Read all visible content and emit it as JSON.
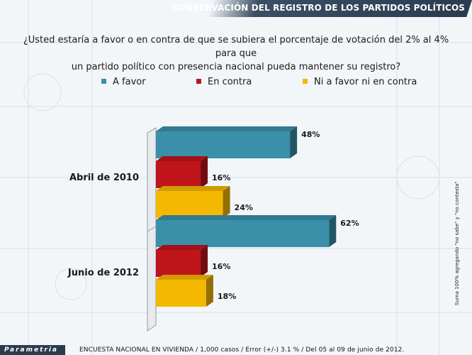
{
  "header": {
    "title": "CONSERVACIÓN DEL REGISTRO DE LOS PARTIDOS POLÍTICOS"
  },
  "question": {
    "line1": "¿Usted estaría a favor o en contra de que se subiera el porcentaje de votación del 2% al 4% para que",
    "line2": "un partido político con presencia nacional pueda mantener su registro?"
  },
  "side_note": "Suma 100% agregando \"no sabe\" y \"no contesta\"",
  "footer": {
    "logo": "Parametria",
    "survey": "ENCUESTA NACIONAL EN VIVIENDA / 1,000 casos / Error (+/-) 3.1 % / Del 05 al 09 de junio de 2012."
  },
  "chart_data": {
    "type": "bar",
    "orientation": "horizontal",
    "title": "",
    "xlabel": "",
    "ylabel": "",
    "xlim": [
      0,
      100
    ],
    "grid": false,
    "legend_position": "top",
    "categories": [
      "Abril de 2010",
      "Junio de 2012"
    ],
    "series": [
      {
        "name": "A favor",
        "color": "#3a8fa9",
        "values": [
          48,
          62
        ],
        "labels": [
          "48%",
          "62%"
        ]
      },
      {
        "name": "En contra",
        "color": "#c0141b",
        "values": [
          16,
          16
        ],
        "labels": [
          "16%",
          "16%"
        ]
      },
      {
        "name": "Ni a favor ni en contra",
        "color": "#f5b800",
        "values": [
          24,
          18
        ],
        "labels": [
          "24%",
          "18%"
        ]
      }
    ]
  }
}
